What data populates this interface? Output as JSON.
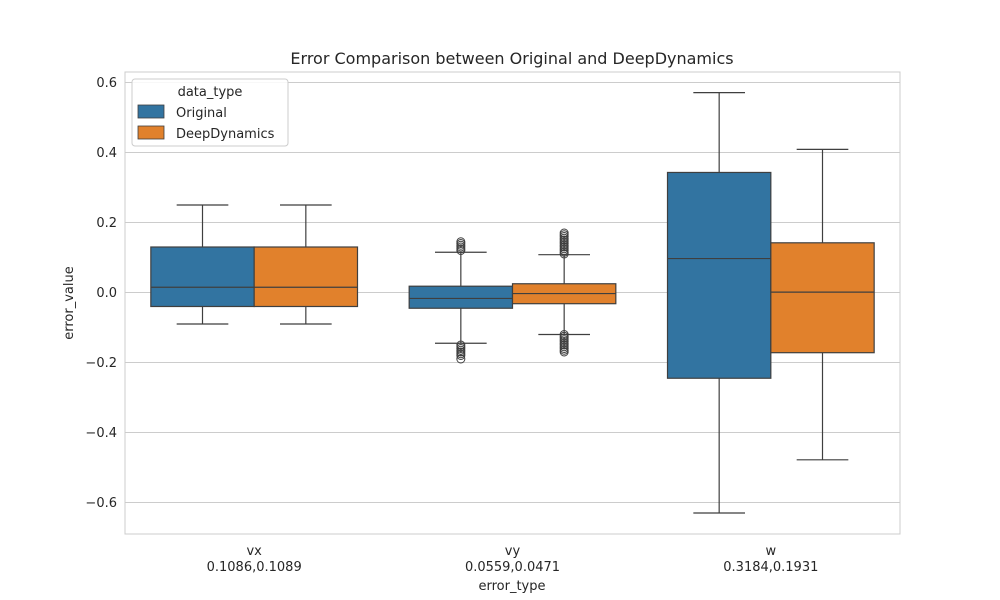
{
  "chart_data": {
    "type": "box",
    "title": "Error Comparison between Original and DeepDynamics",
    "xlabel": "error_type",
    "ylabel": "error_value",
    "ylim": [
      -0.69,
      0.63
    ],
    "yticks": [
      -0.6,
      -0.4,
      -0.2,
      0.0,
      0.2,
      0.4,
      0.6
    ],
    "ytick_labels": [
      "−0.6",
      "−0.4",
      "−0.2",
      "0.0",
      "0.2",
      "0.4",
      "0.6"
    ],
    "grid": true,
    "legend_position": "top-left",
    "legend_title": "data_type",
    "categories": [
      {
        "name": "vx",
        "sublabel": "0.1086,0.1089"
      },
      {
        "name": "vy",
        "sublabel": "0.0559,0.0471"
      },
      {
        "name": "w",
        "sublabel": "0.3184,0.1931"
      }
    ],
    "series": [
      {
        "name": "Original",
        "color": "#3274a1",
        "boxes": [
          {
            "whisker_low": -0.09,
            "q1": -0.04,
            "median": 0.015,
            "q3": 0.13,
            "whisker_high": 0.25,
            "outliers": []
          },
          {
            "whisker_low": -0.145,
            "q1": -0.045,
            "median": -0.017,
            "q3": 0.018,
            "whisker_high": 0.115,
            "outliers": [
              0.12,
              0.125,
              0.13,
              0.135,
              0.14,
              0.145,
              -0.15,
              -0.155,
              -0.16,
              -0.165,
              -0.17,
              -0.175,
              -0.18,
              -0.19
            ]
          },
          {
            "whisker_low": -0.63,
            "q1": -0.245,
            "median": 0.097,
            "q3": 0.343,
            "whisker_high": 0.571,
            "outliers": []
          }
        ]
      },
      {
        "name": "DeepDynamics",
        "color": "#e1812c",
        "boxes": [
          {
            "whisker_low": -0.09,
            "q1": -0.04,
            "median": 0.015,
            "q3": 0.13,
            "whisker_high": 0.25,
            "outliers": []
          },
          {
            "whisker_low": -0.12,
            "q1": -0.032,
            "median": -0.003,
            "q3": 0.025,
            "whisker_high": 0.108,
            "outliers": [
              0.11,
              0.115,
              0.12,
              0.125,
              0.13,
              0.135,
              0.14,
              0.145,
              0.15,
              0.155,
              0.16,
              0.165,
              0.17,
              -0.12,
              -0.125,
              -0.13,
              -0.135,
              -0.14,
              -0.145,
              -0.15,
              -0.155,
              -0.16,
              -0.165,
              -0.17
            ]
          },
          {
            "whisker_low": -0.478,
            "q1": -0.172,
            "median": 0.001,
            "q3": 0.142,
            "whisker_high": 0.409,
            "outliers": []
          }
        ]
      }
    ]
  }
}
